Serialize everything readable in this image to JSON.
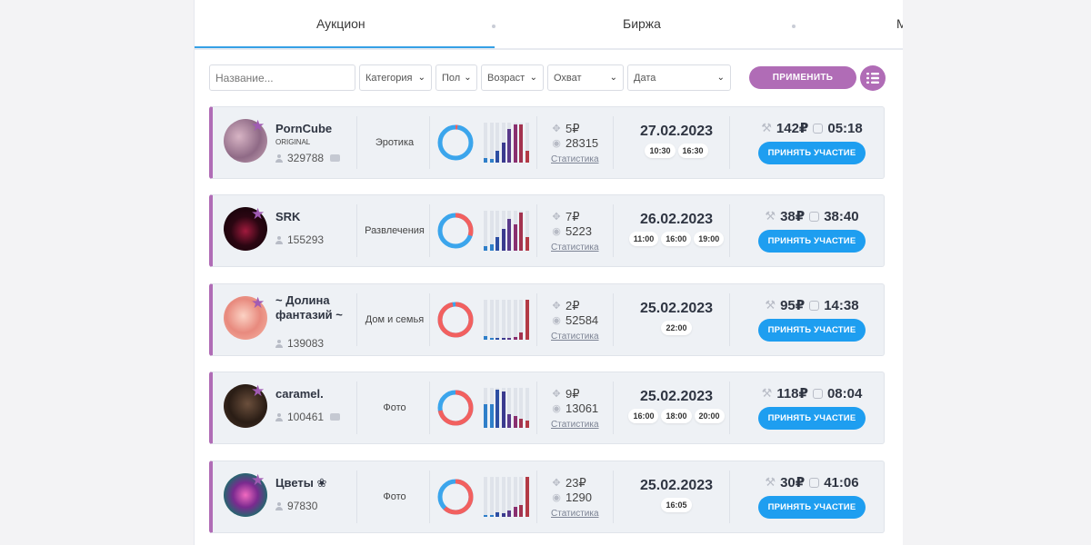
{
  "tabs": [
    {
      "label": "Аукцион"
    },
    {
      "label": "Биржа"
    },
    {
      "label": "М"
    }
  ],
  "filters": {
    "name_placeholder": "Название...",
    "category": "Категория",
    "gender": "Пол",
    "age": "Возраст",
    "reach": "Охват",
    "date": "Дата",
    "apply_label": "ПРИМЕНИТЬ"
  },
  "colors": {
    "accent": "#b06cb6",
    "blue": "#1e9ef0",
    "donut_blue": "#3ba5ec",
    "donut_red": "#f2605f"
  },
  "rows": [
    {
      "name": "PornCube",
      "badge": "ORIGINAL",
      "subscribers": "329788",
      "category": "Эротика",
      "donut_red_share": 0.02,
      "bars": [
        0.12,
        0.1,
        0.3,
        0.5,
        0.85,
        0.95,
        0.95,
        0.3
      ],
      "price": "5₽",
      "views": "28315",
      "stats_label": "Статистика",
      "date": "27.02.2023",
      "times": [
        "10:30",
        "16:30"
      ],
      "bid": "142₽",
      "timer": "05:18",
      "join_label": "ПРИНЯТЬ УЧАСТИЕ"
    },
    {
      "name": "SRK",
      "badge": "",
      "subscribers": "155293",
      "category": "Развлечения",
      "donut_red_share": 0.3,
      "bars": [
        0.12,
        0.15,
        0.35,
        0.55,
        0.8,
        0.65,
        0.95,
        0.35
      ],
      "price": "7₽",
      "views": "5223",
      "stats_label": "Статистика",
      "date": "26.02.2023",
      "times": [
        "11:00",
        "16:00",
        "19:00"
      ],
      "bid": "38₽",
      "timer": "38:40",
      "join_label": "ПРИНЯТЬ УЧАСТИЕ"
    },
    {
      "name": "~ Долина фантазий ~",
      "badge": "",
      "subscribers": "139083",
      "category": "Дом и семья",
      "donut_red_share": 0.97,
      "bars": [
        0.08,
        0.03,
        0.03,
        0.03,
        0.03,
        0.06,
        0.18,
        1.0
      ],
      "price": "2₽",
      "views": "52584",
      "stats_label": "Статистика",
      "date": "25.02.2023",
      "times": [
        "22:00"
      ],
      "bid": "95₽",
      "timer": "14:38",
      "join_label": "ПРИНЯТЬ УЧАСТИЕ"
    },
    {
      "name": "caramel.",
      "badge": "",
      "subscribers": "100461",
      "category": "Фото",
      "donut_red_share": 0.72,
      "bars": [
        0.6,
        0.6,
        0.95,
        0.9,
        0.35,
        0.3,
        0.22,
        0.18
      ],
      "price": "9₽",
      "views": "13061",
      "stats_label": "Статистика",
      "date": "25.02.2023",
      "times": [
        "16:00",
        "18:00",
        "20:00"
      ],
      "bid": "118₽",
      "timer": "08:04",
      "join_label": "ПРИНЯТЬ УЧАСТИЕ"
    },
    {
      "name": "Цветы ❀",
      "badge": "",
      "subscribers": "97830",
      "category": "Фото",
      "donut_red_share": 0.62,
      "bars": [
        0.05,
        0.05,
        0.12,
        0.1,
        0.15,
        0.25,
        0.3,
        1.0
      ],
      "price": "23₽",
      "views": "1290",
      "stats_label": "Статистика",
      "date": "25.02.2023",
      "times": [
        "16:05"
      ],
      "bid": "30₽",
      "timer": "41:06",
      "join_label": "ПРИНЯТЬ УЧАСТИЕ"
    }
  ]
}
